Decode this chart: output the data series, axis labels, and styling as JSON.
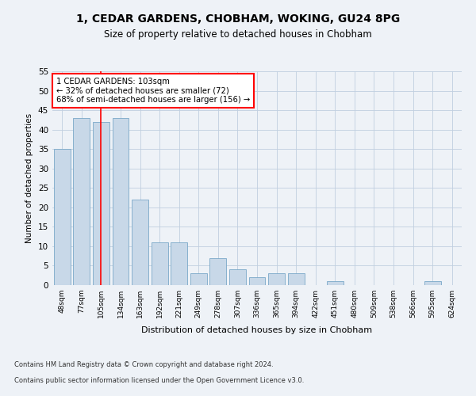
{
  "title": "1, CEDAR GARDENS, CHOBHAM, WOKING, GU24 8PG",
  "subtitle": "Size of property relative to detached houses in Chobham",
  "xlabel": "Distribution of detached houses by size in Chobham",
  "ylabel": "Number of detached properties",
  "categories": [
    "48sqm",
    "77sqm",
    "105sqm",
    "134sqm",
    "163sqm",
    "192sqm",
    "221sqm",
    "249sqm",
    "278sqm",
    "307sqm",
    "336sqm",
    "365sqm",
    "394sqm",
    "422sqm",
    "451sqm",
    "480sqm",
    "509sqm",
    "538sqm",
    "566sqm",
    "595sqm",
    "624sqm"
  ],
  "values": [
    35,
    43,
    42,
    43,
    22,
    11,
    11,
    3,
    7,
    4,
    2,
    3,
    3,
    0,
    1,
    0,
    0,
    0,
    0,
    1,
    0
  ],
  "bar_color": "#c8d8e8",
  "bar_edge_color": "#7aa8c8",
  "red_line_index": 2,
  "ylim": [
    0,
    55
  ],
  "yticks": [
    0,
    5,
    10,
    15,
    20,
    25,
    30,
    35,
    40,
    45,
    50,
    55
  ],
  "annotation_title": "1 CEDAR GARDENS: 103sqm",
  "annotation_line1": "← 32% of detached houses are smaller (72)",
  "annotation_line2": "68% of semi-detached houses are larger (156) →",
  "footer1": "Contains HM Land Registry data © Crown copyright and database right 2024.",
  "footer2": "Contains public sector information licensed under the Open Government Licence v3.0.",
  "bg_color": "#eef2f7",
  "grid_color": "#c0cfe0"
}
